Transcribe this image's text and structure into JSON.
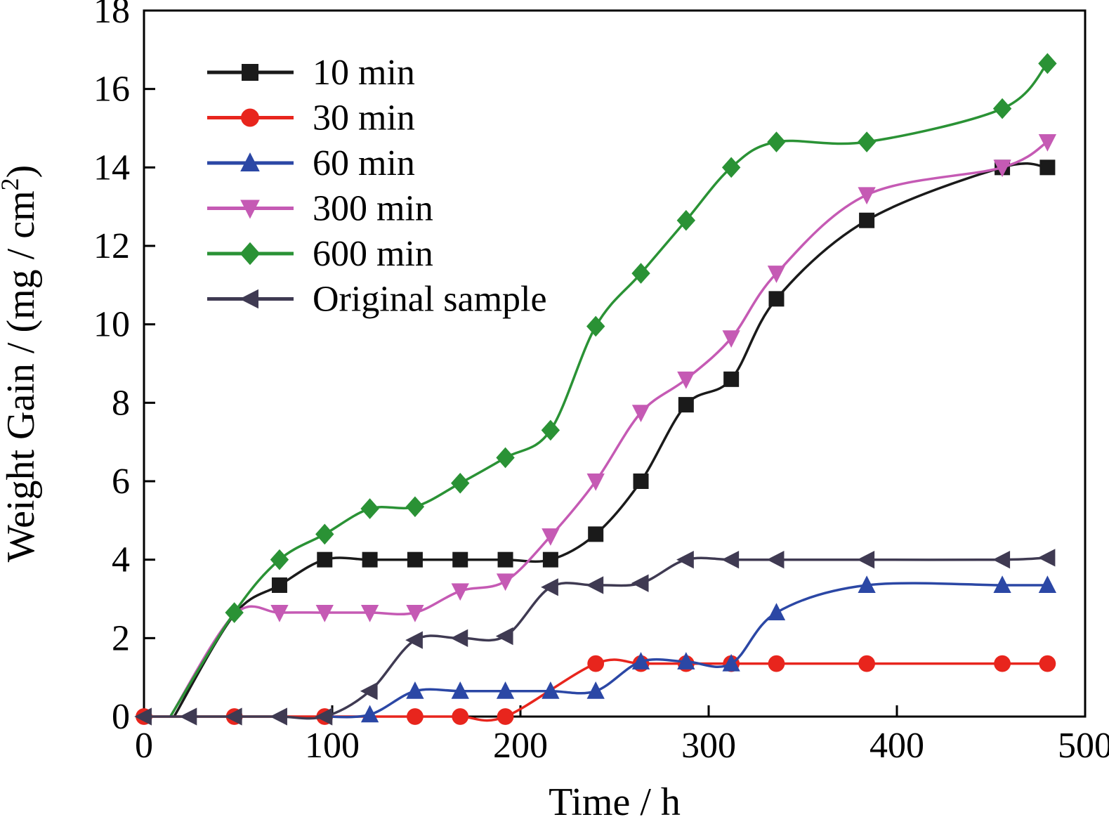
{
  "chart_data": {
    "type": "line",
    "title": "",
    "xlabel": "Time / h",
    "ylabel": {
      "prefix": "Weight Gain / (mg / cm",
      "sup": "2",
      "suffix": ")"
    },
    "xlim": [
      0,
      500
    ],
    "ylim": [
      0,
      18
    ],
    "xticks": [
      0,
      100,
      200,
      300,
      400,
      500
    ],
    "yticks": [
      0,
      2,
      4,
      6,
      8,
      10,
      12,
      14,
      16,
      18
    ],
    "grid": false,
    "legend_position": "top-left-inside",
    "background": "#ffffff",
    "axis_color": "#000000",
    "series": [
      {
        "name": "10 min",
        "color": "#1a1a1a",
        "marker": "square",
        "lead": [
          [
            16,
            0
          ],
          [
            48,
            2.6
          ]
        ],
        "x": [
          72,
          96,
          120,
          144,
          168,
          192,
          216,
          240,
          264,
          288,
          312,
          336,
          384,
          456,
          480
        ],
        "y": [
          3.35,
          4.0,
          4.0,
          4.0,
          4.0,
          4.0,
          4.0,
          4.65,
          6.0,
          7.95,
          8.6,
          10.65,
          12.65,
          14.0,
          14.0
        ]
      },
      {
        "name": "30 min",
        "color": "#e8251d",
        "marker": "circle",
        "lead": [],
        "x": [
          0,
          48,
          96,
          144,
          168,
          192,
          240,
          264,
          288,
          312,
          336,
          384,
          456,
          480
        ],
        "y": [
          0,
          0,
          0,
          0,
          0,
          0,
          1.35,
          1.35,
          1.35,
          1.35,
          1.35,
          1.35,
          1.35,
          1.35
        ]
      },
      {
        "name": "60 min",
        "color": "#2b47a5",
        "marker": "triangle-up",
        "lead": [
          [
            96,
            0
          ]
        ],
        "x": [
          120,
          144,
          168,
          192,
          216,
          240,
          264,
          288,
          312,
          336,
          384,
          456,
          480
        ],
        "y": [
          0.05,
          0.65,
          0.65,
          0.65,
          0.65,
          0.65,
          1.4,
          1.4,
          1.35,
          2.65,
          3.35,
          3.35,
          3.35
        ]
      },
      {
        "name": "300 min",
        "color": "#c55ab4",
        "marker": "triangle-down",
        "lead": [
          [
            14,
            0
          ],
          [
            48,
            2.6
          ]
        ],
        "x": [
          72,
          96,
          120,
          144,
          168,
          192,
          216,
          240,
          264,
          288,
          312,
          336,
          384,
          456,
          480
        ],
        "y": [
          2.65,
          2.65,
          2.65,
          2.65,
          3.2,
          3.45,
          4.6,
          6.0,
          7.75,
          8.6,
          9.65,
          11.3,
          13.3,
          14.0,
          14.65
        ]
      },
      {
        "name": "600 min",
        "color": "#2a9235",
        "marker": "diamond",
        "lead": [
          [
            14,
            0
          ]
        ],
        "x": [
          48,
          72,
          96,
          120,
          144,
          168,
          192,
          216,
          240,
          264,
          288,
          312,
          336,
          384,
          456,
          480
        ],
        "y": [
          2.65,
          4.0,
          4.65,
          5.3,
          5.35,
          5.95,
          6.6,
          7.3,
          9.95,
          11.3,
          12.65,
          14.0,
          14.65,
          14.65,
          15.5,
          16.65
        ]
      },
      {
        "name": "Original sample",
        "color": "#3f3a52",
        "marker": "triangle-left",
        "lead": [],
        "x": [
          0,
          24,
          48,
          72,
          96,
          120,
          144,
          168,
          192,
          216,
          240,
          264,
          288,
          312,
          336,
          384,
          456,
          480
        ],
        "y": [
          0,
          0,
          0,
          0,
          0,
          0.65,
          1.95,
          2.0,
          2.05,
          3.3,
          3.35,
          3.4,
          4.0,
          4.0,
          4.0,
          4.0,
          4.0,
          4.05
        ]
      }
    ]
  }
}
